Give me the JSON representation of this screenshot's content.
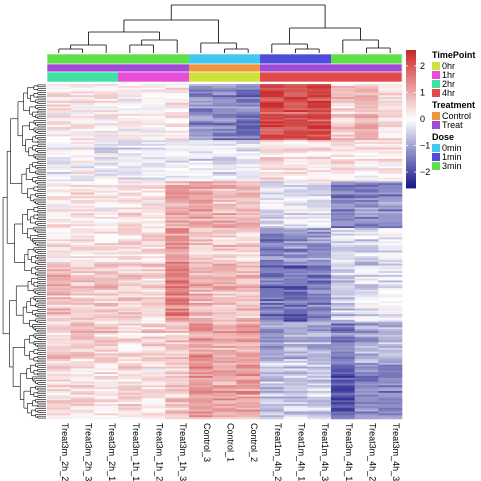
{
  "chart_data": {
    "type": "heatmap",
    "columns": [
      "Treat3m_2h_2",
      "Treat3m_2h_3",
      "Treat3m_2h_1",
      "Treat3m_1h_1",
      "Treat3m_1h_2",
      "Treat3m_1h_3",
      "Control_3",
      "Control_1",
      "Control_2",
      "Treat1m_4h_2",
      "Treat1m_4h_1",
      "Treat1m_4h_3",
      "Treat3m_4h_1",
      "Treat3m_4h_2",
      "Treat3m_4h_3"
    ],
    "color_scale": {
      "min": -2.6,
      "max": 2.6,
      "ticks": [
        -2,
        -1,
        0,
        1,
        2
      ],
      "low": "#1a1a8c",
      "mid": "#ffffff",
      "high": "#cc2a2a"
    },
    "annotations": [
      {
        "title": "Dose",
        "values": [
          "3min",
          "3min",
          "3min",
          "3min",
          "3min",
          "3min",
          "0min",
          "0min",
          "0min",
          "1min",
          "1min",
          "1min",
          "3min",
          "3min",
          "3min"
        ]
      },
      {
        "title": "Treatment",
        "values": [
          "Treat",
          "Treat",
          "Treat",
          "Treat",
          "Treat",
          "Treat",
          "Control",
          "Control",
          "Control",
          "Treat",
          "Treat",
          "Treat",
          "Treat",
          "Treat",
          "Treat"
        ]
      },
      {
        "title": "TimePoint",
        "values": [
          "2hr",
          "2hr",
          "2hr",
          "1hr",
          "1hr",
          "1hr",
          "0hr",
          "0hr",
          "0hr",
          "4hr",
          "4hr",
          "4hr",
          "4hr",
          "4hr",
          "4hr"
        ]
      }
    ],
    "legends": [
      {
        "title": "TimePoint",
        "items": [
          {
            "label": "0hr",
            "color": "#cfe03a"
          },
          {
            "label": "1hr",
            "color": "#e74dd9"
          },
          {
            "label": "2hr",
            "color": "#3fe0a2"
          },
          {
            "label": "4hr",
            "color": "#e04a4a"
          }
        ]
      },
      {
        "title": "Treatment",
        "items": [
          {
            "label": "Control",
            "color": "#f0963a"
          },
          {
            "label": "Treat",
            "color": "#a04bd6"
          }
        ]
      },
      {
        "title": "Dose",
        "items": [
          {
            "label": "0min",
            "color": "#40c8f0"
          },
          {
            "label": "1min",
            "color": "#4f4ddb"
          },
          {
            "label": "3min",
            "color": "#5fe04a"
          }
        ]
      }
    ],
    "row_blocks": [
      {
        "rows": 30,
        "pattern": [
          0.2,
          0.1,
          0.1,
          0.0,
          0.0,
          0.2,
          -1.2,
          -1.3,
          -1.4,
          2.2,
          2.0,
          2.1,
          0.6,
          0.8,
          0.3
        ]
      },
      {
        "rows": 22,
        "pattern": [
          -0.1,
          0.0,
          -0.2,
          -0.3,
          -0.2,
          -0.3,
          -0.3,
          -0.2,
          -0.3,
          0.4,
          0.3,
          0.3,
          0.3,
          0.2,
          0.4
        ]
      },
      {
        "rows": 25,
        "pattern": [
          0.2,
          0.3,
          0.1,
          0.3,
          0.2,
          0.9,
          1.1,
          0.8,
          0.8,
          -0.3,
          -0.2,
          -0.2,
          -1.3,
          -1.2,
          -1.3
        ]
      },
      {
        "rows": 20,
        "pattern": [
          0.3,
          0.4,
          0.3,
          0.5,
          0.5,
          1.3,
          0.6,
          0.6,
          0.5,
          -1.4,
          -1.3,
          -1.2,
          -0.4,
          -0.5,
          -0.3
        ]
      },
      {
        "rows": 30,
        "pattern": [
          0.8,
          0.6,
          0.7,
          0.6,
          0.5,
          1.5,
          0.9,
          0.8,
          0.8,
          -1.6,
          -1.7,
          -1.5,
          -0.6,
          -0.3,
          -0.3
        ]
      },
      {
        "rows": 22,
        "pattern": [
          0.5,
          0.6,
          0.6,
          0.4,
          0.5,
          0.6,
          1.2,
          1.0,
          1.1,
          -1.0,
          -0.9,
          -1.0,
          -1.4,
          -0.9,
          -0.8
        ]
      },
      {
        "rows": 30,
        "pattern": [
          0.4,
          0.4,
          0.3,
          0.4,
          0.3,
          0.7,
          1.3,
          1.1,
          1.2,
          -0.7,
          -0.6,
          -0.6,
          -1.9,
          -1.4,
          -1.3
        ]
      }
    ]
  }
}
